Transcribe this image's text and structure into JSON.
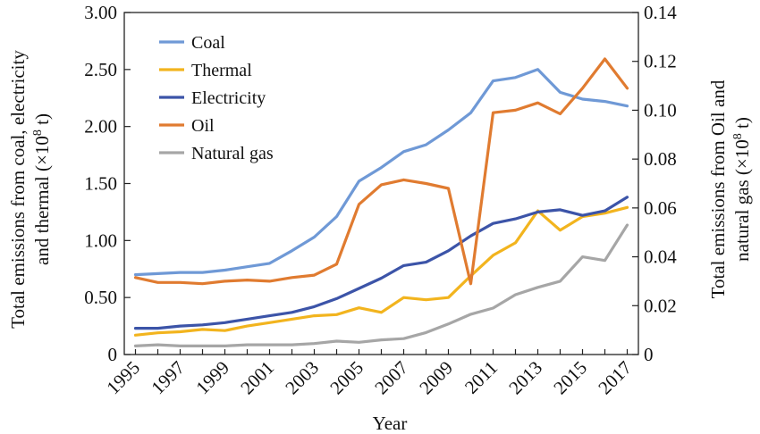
{
  "chart_data": {
    "type": "line",
    "x_label": "Year",
    "y_left_label_lines": [
      "Total emissions from coal, electricity",
      "and thermal (×10",
      "8",
      " t)"
    ],
    "y_right_label_lines": [
      "Total emissions from Oil and",
      "natural gas (×10",
      "8",
      " t)"
    ],
    "x_ticks": [
      "1995",
      "1997",
      "1999",
      "2001",
      "2003",
      "2005",
      "2007",
      "2009",
      "2011",
      "2013",
      "2015",
      "2017"
    ],
    "x_range": [
      1994.5,
      2017.5
    ],
    "y_left_range": [
      0,
      3.0
    ],
    "y_left_ticks": [
      "0",
      "0.50",
      "1.00",
      "1.50",
      "2.00",
      "2.50",
      "3.00"
    ],
    "y_right_range": [
      0,
      0.14
    ],
    "y_right_ticks": [
      "0",
      "0.02",
      "0.04",
      "0.06",
      "0.08",
      "0.10",
      "0.12",
      "0.14"
    ],
    "legend_position": "top-left",
    "grid": false,
    "x": [
      1995,
      1996,
      1997,
      1998,
      1999,
      2000,
      2001,
      2002,
      2003,
      2004,
      2005,
      2006,
      2007,
      2008,
      2009,
      2010,
      2011,
      2012,
      2013,
      2014,
      2015,
      2016,
      2017
    ],
    "series": [
      {
        "name": "Coal",
        "axis": "left",
        "color": "#6f99d6",
        "values": [
          0.7,
          0.71,
          0.72,
          0.72,
          0.74,
          0.77,
          0.8,
          0.91,
          1.03,
          1.21,
          1.52,
          1.64,
          1.78,
          1.84,
          1.97,
          2.12,
          2.4,
          2.43,
          2.5,
          2.3,
          2.24,
          2.22,
          2.18
        ]
      },
      {
        "name": "Thermal",
        "axis": "left",
        "color": "#f2b41e",
        "values": [
          0.17,
          0.19,
          0.2,
          0.22,
          0.21,
          0.25,
          0.28,
          0.31,
          0.34,
          0.35,
          0.41,
          0.37,
          0.5,
          0.48,
          0.5,
          0.69,
          0.87,
          0.98,
          1.26,
          1.09,
          1.21,
          1.24,
          1.29
        ]
      },
      {
        "name": "Electricity",
        "axis": "left",
        "color": "#3c54a8",
        "values": [
          0.23,
          0.23,
          0.25,
          0.26,
          0.28,
          0.31,
          0.34,
          0.37,
          0.42,
          0.49,
          0.58,
          0.67,
          0.78,
          0.81,
          0.91,
          1.04,
          1.15,
          1.19,
          1.25,
          1.27,
          1.22,
          1.26,
          1.38
        ]
      },
      {
        "name": "Oil",
        "axis": "right",
        "color": "#e07b30",
        "values": [
          0.0315,
          0.0295,
          0.0295,
          0.029,
          0.03,
          0.0305,
          0.03,
          0.0315,
          0.0325,
          0.037,
          0.0615,
          0.0695,
          0.0715,
          0.07,
          0.068,
          0.029,
          0.099,
          0.1,
          0.103,
          0.0985,
          0.109,
          0.121,
          0.109
        ]
      },
      {
        "name": "Natural gas",
        "axis": "right",
        "color": "#a6a6a6",
        "values": [
          0.0035,
          0.004,
          0.0035,
          0.0035,
          0.0035,
          0.004,
          0.004,
          0.004,
          0.0045,
          0.0055,
          0.005,
          0.006,
          0.0065,
          0.009,
          0.0125,
          0.0165,
          0.019,
          0.0245,
          0.0275,
          0.03,
          0.04,
          0.0385,
          0.053
        ]
      }
    ]
  }
}
